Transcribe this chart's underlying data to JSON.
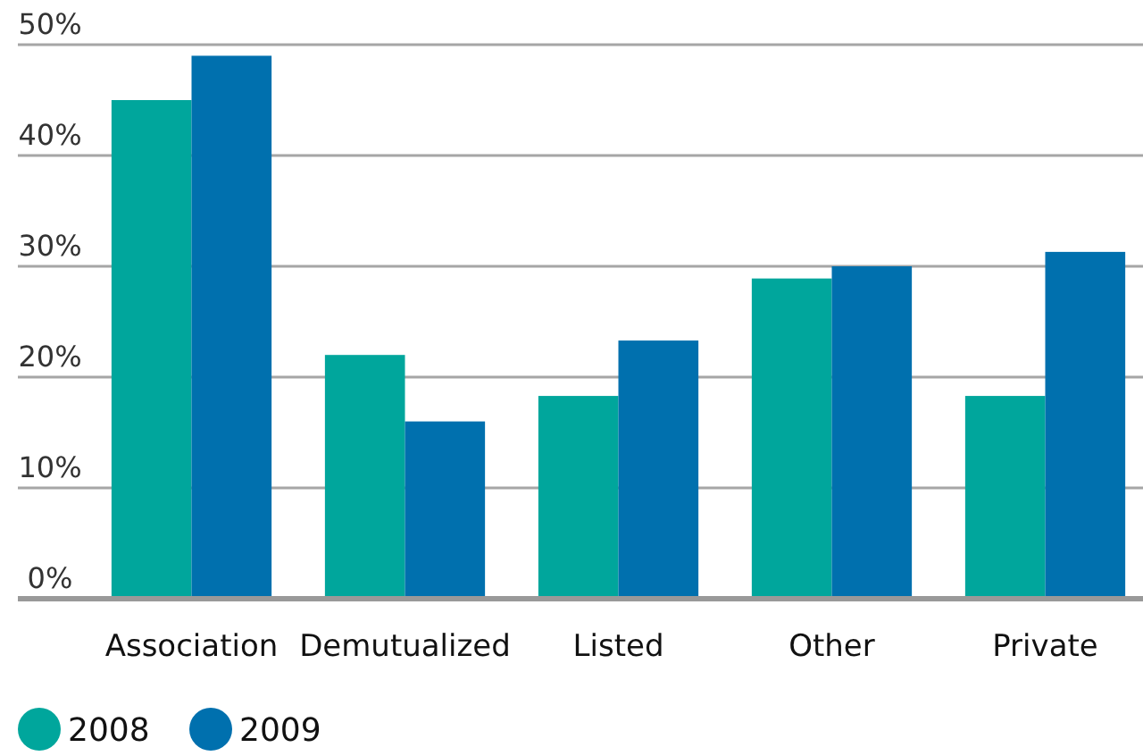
{
  "chart_data": {
    "type": "bar",
    "categories": [
      "Association",
      "Demutualized",
      "Listed",
      "Other",
      "Private"
    ],
    "series": [
      {
        "name": "2008",
        "color": "#00a69c",
        "values": [
          45,
          22,
          18.3,
          28.9,
          18.3
        ]
      },
      {
        "name": "2009",
        "color": "#0070ae",
        "values": [
          49,
          16,
          23.3,
          30,
          31.3
        ]
      }
    ],
    "ylim": [
      0,
      50
    ],
    "yticks": [
      {
        "value": 0,
        "label": "0%"
      },
      {
        "value": 10,
        "label": "10%"
      },
      {
        "value": 20,
        "label": "20%"
      },
      {
        "value": 30,
        "label": "30%"
      },
      {
        "value": 40,
        "label": "40%"
      },
      {
        "value": 50,
        "label": "50%"
      }
    ],
    "grid": "y",
    "legend": "bottom"
  }
}
